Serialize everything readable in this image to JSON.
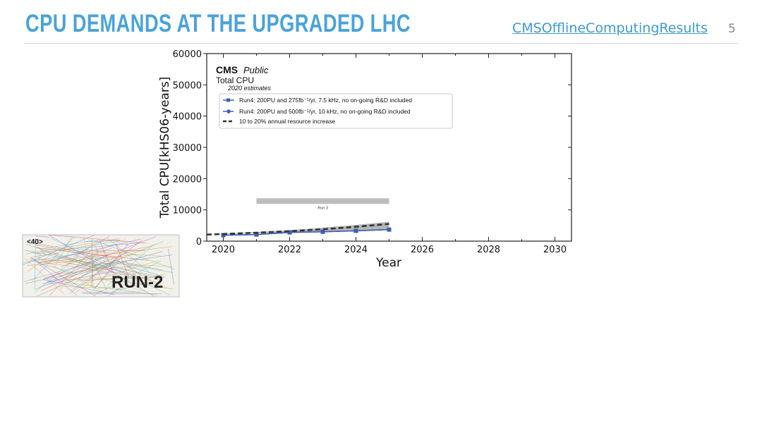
{
  "slide": {
    "title": "CPU DEMANDS AT THE UPGRADED LHC",
    "link_text": "CMSOfflineComputingResults",
    "page_number": "5"
  },
  "colors": {
    "title": "#4aa3d8",
    "series_blue": "#3f5fb0",
    "trend": "#333333",
    "band": "#a8a8a8",
    "run3_bar": "#bdbdbd"
  },
  "inset": {
    "pileup_label": "<40>",
    "run_label": "RUN-2"
  },
  "chart_data": {
    "type": "line",
    "brand": "CMS",
    "brand_suffix": "Public",
    "title": "Total CPU",
    "subtitle": "2020 estimates",
    "xlabel": "Year",
    "ylabel": "Total CPU[kHS06-years]",
    "xlim": [
      2019.5,
      2030.5
    ],
    "ylim": [
      0,
      60000
    ],
    "xticks": [
      2020,
      2022,
      2024,
      2026,
      2028,
      2030
    ],
    "yticks": [
      0,
      10000,
      20000,
      30000,
      40000,
      50000,
      60000
    ],
    "legend_position": "top-left",
    "run_period": {
      "label": "Run 3",
      "start": 2021,
      "end": 2025,
      "y": 12800
    },
    "series": [
      {
        "name": "Run4: 200PU and 275fb⁻¹/yr, 7.5 kHz, no on-going R&D included",
        "marker": "square",
        "style": "solid",
        "x": [
          2020,
          2021,
          2022,
          2023,
          2024,
          2025
        ],
        "y": [
          1900,
          2100,
          2800,
          3000,
          3300,
          3700
        ]
      },
      {
        "name": "Run4: 200PU and 500fb⁻¹/yr, 10 kHz, no on-going R&D included",
        "marker": "circle",
        "style": "dashdot",
        "x": [
          2020,
          2021,
          2022,
          2023,
          2024,
          2025
        ],
        "y": [
          1900,
          2100,
          2800,
          3000,
          3300,
          3700
        ]
      },
      {
        "name": "10 to 20% annual resource increase",
        "marker": "none",
        "style": "dashed",
        "x": [
          2019.5,
          2020,
          2021,
          2022,
          2023,
          2024,
          2025
        ],
        "y": [
          2100,
          2300,
          2700,
          3200,
          3800,
          4600,
          5500
        ]
      }
    ],
    "band": {
      "x": [
        2019.5,
        2020,
        2021,
        2022,
        2023,
        2024,
        2025
      ],
      "lower": [
        2100,
        2200,
        2500,
        2800,
        3100,
        3400,
        3700
      ],
      "upper": [
        2100,
        2400,
        2900,
        3500,
        4300,
        5200,
        6200
      ]
    }
  }
}
